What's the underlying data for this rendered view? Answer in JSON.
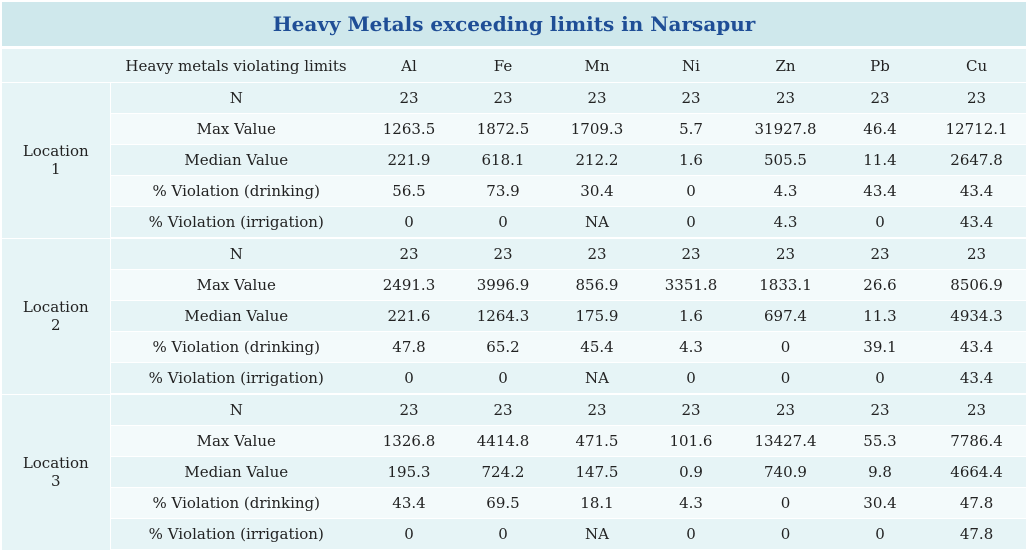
{
  "title": "Heavy Metals exceeding limits in Narsapur",
  "header": {
    "corner": "",
    "label": "Heavy metals violating limits",
    "metals": [
      "Al",
      "Fe",
      "Mn",
      "Ni",
      "Zn",
      "Pb",
      "Cu"
    ]
  },
  "locations": [
    {
      "label_line1": "Location",
      "label_line2": "1",
      "rows": [
        {
          "label": "N",
          "values": [
            "23",
            "23",
            "23",
            "23",
            "23",
            "23",
            "23"
          ]
        },
        {
          "label": "Max Value",
          "values": [
            "1263.5",
            "1872.5",
            "1709.3",
            "5.7",
            "31927.8",
            "46.4",
            "12712.1"
          ]
        },
        {
          "label": "Median Value",
          "values": [
            "221.9",
            "618.1",
            "212.2",
            "1.6",
            "505.5",
            "11.4",
            "2647.8"
          ]
        },
        {
          "label": "% Violation (drinking)",
          "values": [
            "56.5",
            "73.9",
            "30.4",
            "0",
            "4.3",
            "43.4",
            "43.4"
          ]
        },
        {
          "label": "% Violation (irrigation)",
          "values": [
            "0",
            "0",
            "NA",
            "0",
            "4.3",
            "0",
            "43.4"
          ]
        }
      ]
    },
    {
      "label_line1": "Location",
      "label_line2": "2",
      "rows": [
        {
          "label": "N",
          "values": [
            "23",
            "23",
            "23",
            "23",
            "23",
            "23",
            "23"
          ]
        },
        {
          "label": "Max Value",
          "values": [
            "2491.3",
            "3996.9",
            "856.9",
            "3351.8",
            "1833.1",
            "26.6",
            "8506.9"
          ]
        },
        {
          "label": "Median Value",
          "values": [
            "221.6",
            "1264.3",
            "175.9",
            "1.6",
            "697.4",
            "11.3",
            "4934.3"
          ]
        },
        {
          "label": "% Violation (drinking)",
          "values": [
            "47.8",
            "65.2",
            "45.4",
            "4.3",
            "0",
            "39.1",
            "43.4"
          ]
        },
        {
          "label": "% Violation (irrigation)",
          "values": [
            "0",
            "0",
            "NA",
            "0",
            "0",
            "0",
            "43.4"
          ]
        }
      ]
    },
    {
      "label_line1": "Location",
      "label_line2": "3",
      "rows": [
        {
          "label": "N",
          "values": [
            "23",
            "23",
            "23",
            "23",
            "23",
            "23",
            "23"
          ]
        },
        {
          "label": "Max Value",
          "values": [
            "1326.8",
            "4414.8",
            "471.5",
            "101.6",
            "13427.4",
            "55.3",
            "7786.4"
          ]
        },
        {
          "label": "Median Value",
          "values": [
            "195.3",
            "724.2",
            "147.5",
            "0.9",
            "740.9",
            "9.8",
            "4664.4"
          ]
        },
        {
          "label": "% Violation (drinking)",
          "values": [
            "43.4",
            "69.5",
            "18.1",
            "4.3",
            "0",
            "30.4",
            "47.8"
          ]
        },
        {
          "label": "% Violation (irrigation)",
          "values": [
            "0",
            "0",
            "NA",
            "0",
            "0",
            "0",
            "47.8"
          ]
        }
      ]
    }
  ]
}
